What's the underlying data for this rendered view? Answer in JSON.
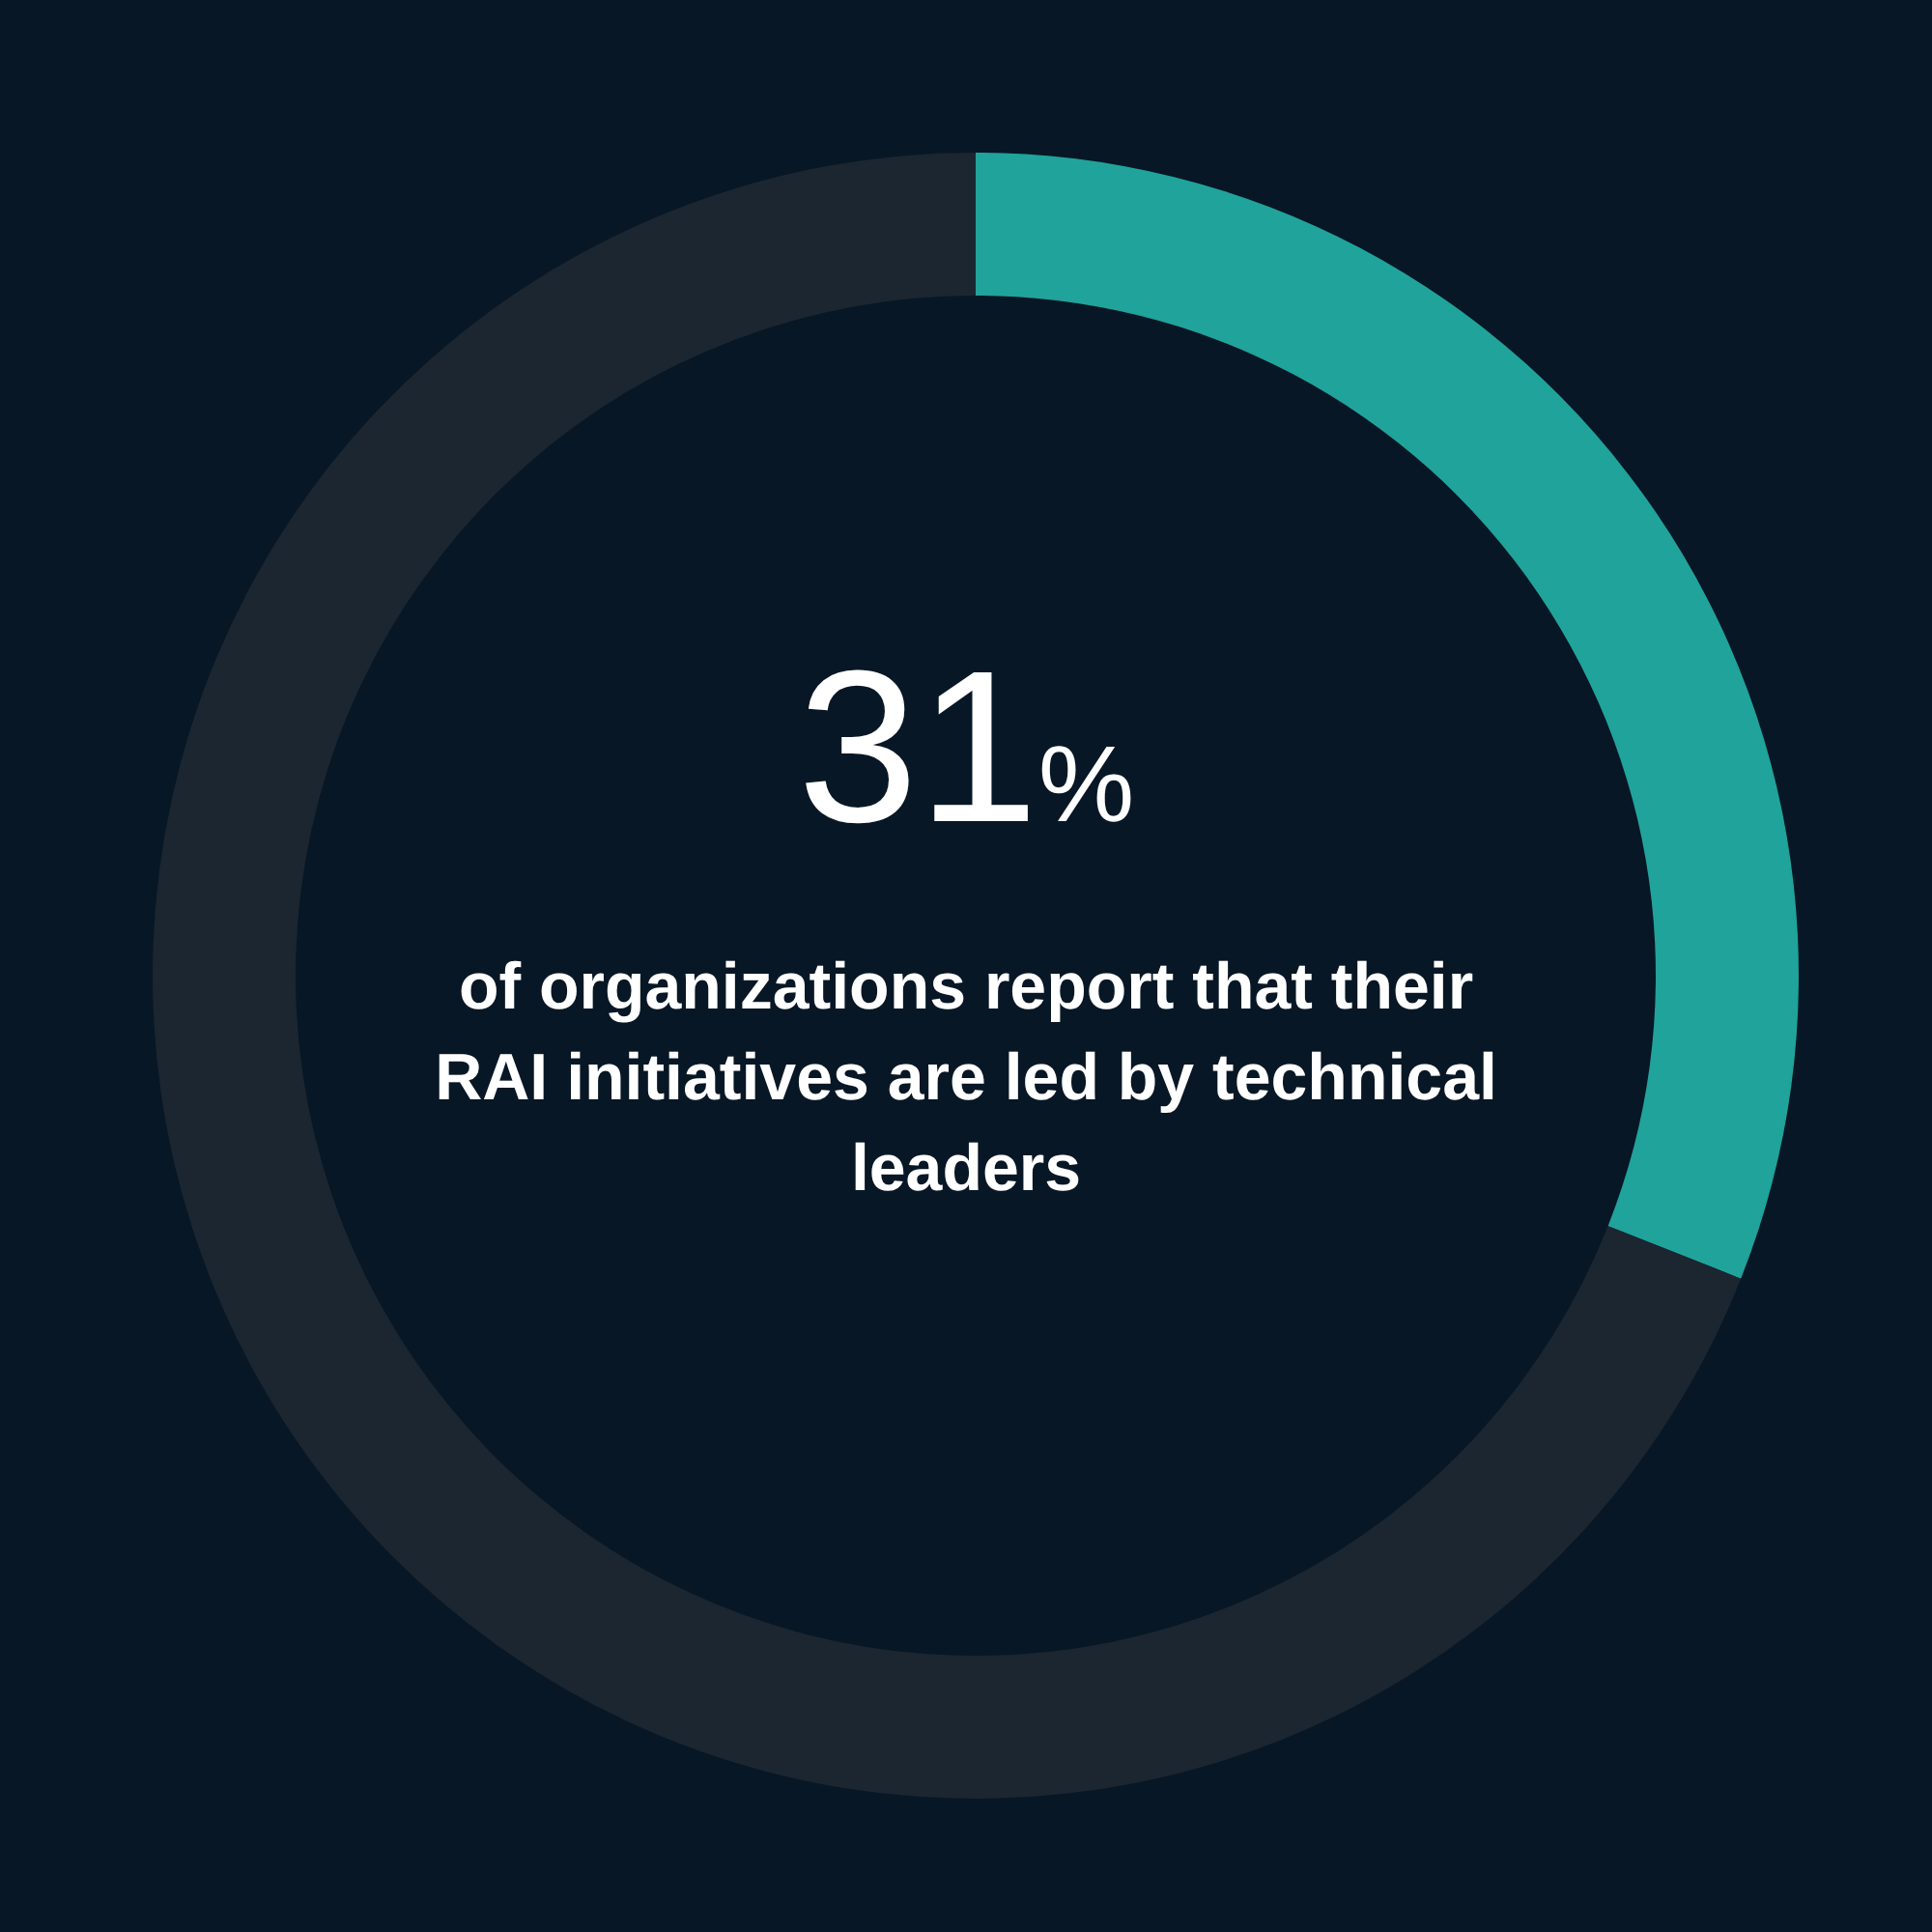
{
  "chart_data": {
    "type": "donut",
    "categories": [
      null,
      null
    ],
    "values": [
      31,
      69
    ],
    "colors": [
      "#20a39b",
      "#1b2631"
    ],
    "value_labels": [
      "31%",
      null
    ],
    "annotations": [
      "of organizations report that their RAI initiatives are led by technical leaders"
    ],
    "legend": false
  }
}
